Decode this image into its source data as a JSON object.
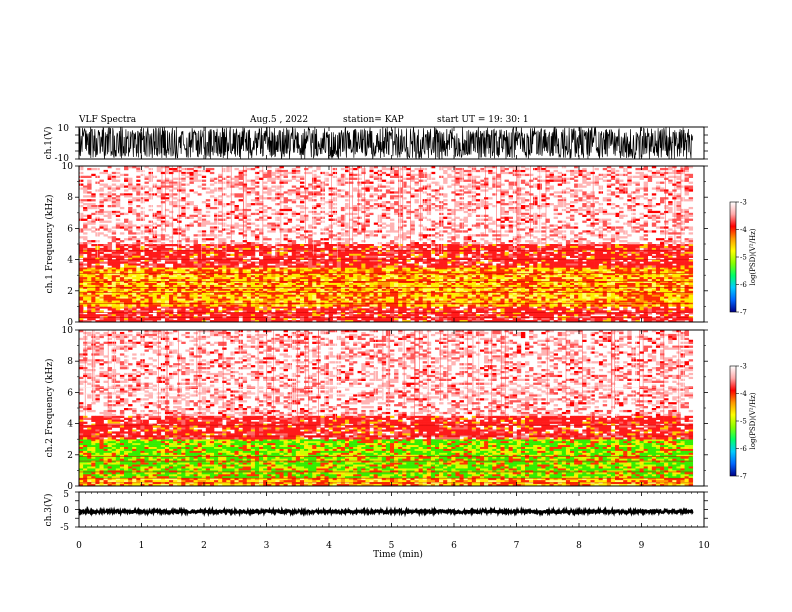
{
  "header": {
    "title": "VLF Spectra",
    "date": "Aug.5 , 2022",
    "station": "station= KAP",
    "start": "start UT = 19: 30: 1"
  },
  "chart_data": [
    {
      "type": "line",
      "name": "ch1-waveform",
      "ylabel": "ch.1(V)",
      "ylim": [
        -10,
        10
      ],
      "y_ticks": [
        "10",
        "-10"
      ],
      "xlim": [
        0,
        10
      ],
      "color": "#000000",
      "description_values": {
        "typical_amplitude_range": [
          -10,
          10
        ],
        "data_end_min": 9.82
      }
    },
    {
      "type": "heatmap",
      "name": "ch1-spectrogram",
      "ylabel": "ch.1 Frequency (kHz)",
      "ylim": [
        0,
        10
      ],
      "y_ticks": [
        "0",
        "2",
        "4",
        "6",
        "8",
        "10"
      ],
      "xlim": [
        0,
        10
      ],
      "data_end_min": 9.82,
      "colorbar": {
        "label": "log(PSD)(V²/Hz)",
        "range": [
          -7,
          -3
        ],
        "ticks": [
          "-3",
          "-4",
          "-5",
          "-6",
          "-7"
        ],
        "colors": [
          "#000088",
          "#0066ff",
          "#00ccff",
          "#00ff66",
          "#88ff00",
          "#ffff00",
          "#ff9900",
          "#ff0000",
          "#ffaaaa",
          "#ffffff"
        ]
      },
      "bands": [
        {
          "f": [
            0.0,
            1.0
          ],
          "level": "red"
        },
        {
          "f": [
            1.0,
            3.5
          ],
          "level": "yellow"
        },
        {
          "f": [
            3.5,
            5.0
          ],
          "level": "red"
        },
        {
          "f": [
            5.0,
            10.0
          ],
          "level": "light-red"
        }
      ]
    },
    {
      "type": "heatmap",
      "name": "ch2-spectrogram",
      "ylabel": "ch.2 Frequency (kHz)",
      "ylim": [
        0,
        10
      ],
      "y_ticks": [
        "0",
        "2",
        "4",
        "6",
        "8",
        "10"
      ],
      "xlim": [
        0,
        10
      ],
      "data_end_min": 9.82,
      "colorbar": {
        "label": "log(PSD)(V²/Hz)",
        "range": [
          -7,
          -3
        ],
        "ticks": [
          "-3",
          "-4",
          "-5",
          "-6",
          "-7"
        ]
      },
      "bands": [
        {
          "f": [
            0.0,
            0.5
          ],
          "level": "yellow"
        },
        {
          "f": [
            0.5,
            3.0
          ],
          "level": "green"
        },
        {
          "f": [
            3.0,
            4.5
          ],
          "level": "red"
        },
        {
          "f": [
            4.5,
            10.0
          ],
          "level": "light-red"
        }
      ]
    },
    {
      "type": "line",
      "name": "ch3-waveform",
      "ylabel": "ch.3(V)",
      "ylim": [
        -5,
        5
      ],
      "y_ticks": [
        "5",
        "0",
        "-5"
      ],
      "xlim": [
        0,
        10
      ],
      "color": "#000000",
      "description_values": {
        "typical_amplitude_range": [
          -1.0,
          -0.2
        ],
        "data_end_min": 9.82
      }
    }
  ],
  "x_axis": {
    "label": "Time (min)",
    "ticks": [
      "0",
      "1",
      "2",
      "3",
      "4",
      "5",
      "6",
      "7",
      "8",
      "9",
      "10"
    ]
  }
}
